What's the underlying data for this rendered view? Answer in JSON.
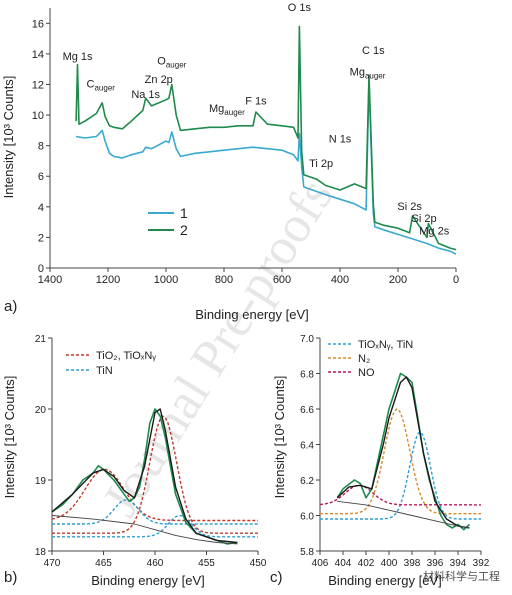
{
  "watermark": "Journal Pre-proofs",
  "footer_mark": "材料科学与工程",
  "colors": {
    "series1": "#3aa9d1",
    "series2": "#1f8a4c",
    "tio2": "#c0392b",
    "tin": "#2e9fd1",
    "n2": "#d98b2b",
    "no": "#b5175a",
    "envelope": "#1a1a1a",
    "background_line": "#444444"
  },
  "panel_labels": {
    "a": "a)",
    "b": "b)",
    "c": "c)"
  },
  "chart_data": [
    {
      "type": "line",
      "id": "survey",
      "xlabel": "Binding energy [eV]",
      "ylabel": "Intensity [10³ Counts]",
      "xlim": [
        1400,
        0
      ],
      "ylim": [
        0,
        17
      ],
      "xticks": [
        1400,
        1200,
        1000,
        800,
        600,
        400,
        200,
        0
      ],
      "yticks": [
        0,
        2,
        4,
        6,
        8,
        10,
        12,
        14,
        16
      ],
      "legend": {
        "position": "center-left",
        "entries": [
          "1",
          "2"
        ]
      },
      "series": [
        {
          "name": "1",
          "color_key": "series1",
          "x": [
            1310,
            1280,
            1240,
            1220,
            1210,
            1195,
            1180,
            1150,
            1120,
            1080,
            1070,
            1050,
            1000,
            990,
            980,
            965,
            950,
            900,
            850,
            800,
            750,
            700,
            650,
            600,
            560,
            545,
            540,
            532,
            525,
            510,
            480,
            450,
            400,
            350,
            310,
            300,
            285,
            280,
            250,
            200,
            150,
            100,
            60,
            20,
            0
          ],
          "y": [
            8.6,
            8.5,
            8.6,
            9.0,
            8.3,
            7.5,
            7.3,
            7.2,
            7.4,
            7.6,
            7.9,
            7.8,
            8.3,
            8.2,
            8.9,
            7.8,
            7.3,
            7.5,
            7.6,
            7.7,
            7.8,
            7.9,
            7.8,
            7.7,
            7.4,
            7.0,
            8.8,
            6.6,
            5.3,
            5.2,
            5.0,
            4.8,
            4.5,
            4.2,
            3.8,
            12.2,
            3.6,
            2.7,
            2.5,
            2.2,
            1.9,
            1.6,
            1.3,
            1.1,
            0.9
          ]
        },
        {
          "name": "2",
          "color_key": "series2",
          "x": [
            1310,
            1305,
            1300,
            1280,
            1240,
            1220,
            1210,
            1195,
            1180,
            1150,
            1120,
            1080,
            1070,
            1050,
            1000,
            990,
            980,
            965,
            950,
            900,
            850,
            800,
            750,
            700,
            690,
            650,
            600,
            560,
            545,
            540,
            532,
            525,
            510,
            480,
            450,
            400,
            350,
            310,
            300,
            285,
            280,
            250,
            200,
            160,
            150,
            100,
            95,
            60,
            20,
            0
          ],
          "y": [
            9.6,
            13.3,
            9.4,
            9.6,
            10.1,
            10.8,
            9.9,
            9.3,
            9.2,
            9.1,
            9.6,
            10.3,
            11.1,
            10.6,
            11.0,
            11.1,
            12.0,
            10.0,
            9.0,
            9.1,
            9.2,
            9.2,
            9.3,
            9.3,
            10.2,
            9.4,
            9.3,
            9.2,
            8.5,
            15.8,
            7.6,
            6.1,
            6.0,
            5.8,
            5.4,
            5.1,
            5.5,
            5.2,
            12.6,
            4.2,
            3.0,
            2.8,
            2.6,
            2.3,
            3.4,
            2.0,
            2.9,
            1.6,
            1.3,
            1.2
          ]
        }
      ],
      "annotations": [
        {
          "text": "Mg 1s",
          "x": 1305,
          "y": 13.6
        },
        {
          "text": "C",
          "sub": "auger",
          "x": 1225,
          "y": 11.8
        },
        {
          "text": "Na 1s",
          "x": 1070,
          "y": 11.1
        },
        {
          "text": "Zn 2p",
          "x": 1025,
          "y": 12.1
        },
        {
          "text": "O",
          "sub": "auger",
          "x": 980,
          "y": 13.3
        },
        {
          "text": "Mg",
          "sub": "auger",
          "x": 790,
          "y": 10.2
        },
        {
          "text": "F 1s",
          "x": 690,
          "y": 10.7
        },
        {
          "text": "O 1s",
          "x": 540,
          "y": 16.8
        },
        {
          "text": "Mg",
          "sub": "auger",
          "x": 305,
          "y": 12.6
        },
        {
          "text": "C 1s",
          "x": 285,
          "y": 14.0
        },
        {
          "text": "N 1s",
          "x": 400,
          "y": 8.2
        },
        {
          "text": "Ti 2p",
          "x": 465,
          "y": 6.6
        },
        {
          "text": "Si 2s",
          "x": 160,
          "y": 3.8
        },
        {
          "text": "Si 2p",
          "x": 110,
          "y": 3.0
        },
        {
          "text": "Mg 2s",
          "x": 75,
          "y": 2.2
        }
      ]
    },
    {
      "type": "line",
      "id": "ti2p",
      "xlabel": "Binding energy [eV]",
      "ylabel": "Intensity [10³ Counts]",
      "xlim": [
        470,
        450
      ],
      "ylim": [
        18,
        21
      ],
      "xticks": [
        470,
        465,
        460,
        455,
        450
      ],
      "yticks": [
        18,
        19,
        20,
        21
      ],
      "legend": {
        "position": "top-left",
        "entries": [
          "TiO₂, TiOₓNᵧ",
          "TiN"
        ]
      },
      "series": [
        {
          "name": "measured",
          "color_key": "series2",
          "x": [
            470,
            469,
            468,
            467,
            466,
            465.5,
            465,
            464,
            463,
            462.5,
            462,
            461.5,
            461,
            460.5,
            460,
            459.5,
            459,
            458.5,
            458,
            457,
            456,
            455,
            454,
            453,
            452
          ],
          "y": [
            18.55,
            18.65,
            18.8,
            19.0,
            19.1,
            19.2,
            19.15,
            19.0,
            18.8,
            18.7,
            18.75,
            18.9,
            19.3,
            19.8,
            20.0,
            19.9,
            19.6,
            19.2,
            18.8,
            18.4,
            18.25,
            18.2,
            18.15,
            18.1,
            18.12
          ]
        },
        {
          "name": "envelope",
          "color_key": "envelope",
          "x": [
            470,
            468,
            466,
            465,
            464,
            463,
            462,
            461,
            460,
            459.5,
            459,
            458,
            457,
            456,
            454,
            452
          ],
          "y": [
            18.55,
            18.8,
            19.1,
            19.15,
            19.05,
            18.85,
            18.75,
            19.2,
            19.95,
            20.0,
            19.7,
            18.9,
            18.45,
            18.25,
            18.15,
            18.12
          ]
        },
        {
          "name": "background",
          "color_key": "background_line",
          "x": [
            470,
            466,
            462,
            460,
            458,
            456,
            454,
            452
          ],
          "y": [
            18.5,
            18.45,
            18.38,
            18.3,
            18.22,
            18.16,
            18.12,
            18.1
          ]
        }
      ],
      "peaks": [
        {
          "legend": "TiO₂, TiOₓNᵧ",
          "color_key": "tio2",
          "center": 464.9,
          "height": 19.15,
          "base": 18.43,
          "width": 1.9
        },
        {
          "legend": "TiO₂, TiOₓNᵧ",
          "color_key": "tio2",
          "center": 459.2,
          "height": 19.9,
          "base": 18.25,
          "width": 1.3
        },
        {
          "legend": "TiN",
          "color_key": "tin",
          "center": 462.8,
          "height": 18.72,
          "base": 18.38,
          "width": 1.2
        },
        {
          "legend": "TiN",
          "color_key": "tin",
          "center": 457.6,
          "height": 18.5,
          "base": 18.2,
          "width": 1.1
        }
      ]
    },
    {
      "type": "line",
      "id": "n1s",
      "xlabel": "Binding energy [eV]",
      "ylabel": "Intensity [10³ Counts]",
      "xlim": [
        406,
        392
      ],
      "ylim": [
        5.8,
        7.0
      ],
      "xticks": [
        406,
        404,
        402,
        400,
        398,
        396,
        394,
        392
      ],
      "yticks": [
        5.8,
        6.0,
        6.2,
        6.4,
        6.6,
        6.8,
        7.0
      ],
      "legend": {
        "position": "top-left",
        "entries": [
          "TiOₓNᵧ, TiN",
          "N₂",
          "NO"
        ]
      },
      "series": [
        {
          "name": "measured",
          "color_key": "series2",
          "x": [
            404.5,
            404,
            403,
            402.5,
            402,
            401.5,
            401,
            400.5,
            400,
            399.5,
            399,
            398.5,
            398,
            397.5,
            397,
            396.5,
            396,
            395.5,
            395,
            394.5,
            394,
            393.5,
            393
          ],
          "y": [
            6.1,
            6.15,
            6.2,
            6.18,
            6.1,
            6.15,
            6.3,
            6.45,
            6.6,
            6.7,
            6.8,
            6.78,
            6.75,
            6.55,
            6.35,
            6.2,
            6.1,
            6.0,
            5.95,
            5.93,
            5.95,
            5.92,
            5.95
          ]
        },
        {
          "name": "envelope",
          "color_key": "envelope",
          "x": [
            404.5,
            403.5,
            402.5,
            401.5,
            400.5,
            400,
            399,
            398.5,
            398,
            397,
            396,
            395,
            394,
            393
          ],
          "y": [
            6.1,
            6.16,
            6.17,
            6.15,
            6.4,
            6.55,
            6.75,
            6.78,
            6.72,
            6.35,
            6.08,
            5.98,
            5.94,
            5.93
          ]
        },
        {
          "name": "background",
          "color_key": "background_line",
          "x": [
            404.5,
            402,
            400,
            398,
            396,
            394,
            393
          ],
          "y": [
            6.08,
            6.06,
            6.03,
            6.0,
            5.97,
            5.94,
            5.93
          ]
        }
      ],
      "peaks": [
        {
          "legend": "TiOₓNᵧ, TiN",
          "color_key": "tin",
          "center": 397.3,
          "height": 6.47,
          "base": 5.98,
          "width": 0.9
        },
        {
          "legend": "N₂",
          "color_key": "n2",
          "center": 399.3,
          "height": 6.6,
          "base": 6.01,
          "width": 1.1
        },
        {
          "legend": "NO",
          "color_key": "no",
          "center": 402.6,
          "height": 6.17,
          "base": 6.06,
          "width": 1.2
        }
      ]
    }
  ]
}
